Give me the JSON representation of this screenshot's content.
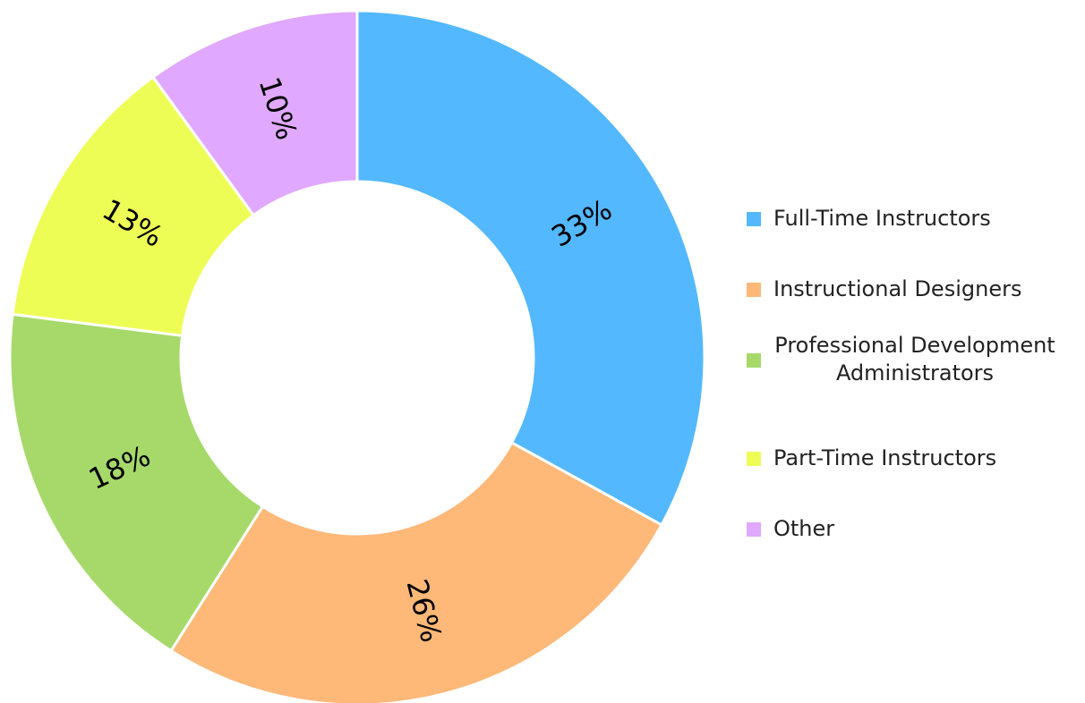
{
  "chart_data": {
    "type": "donut",
    "categories": [
      "Full-Time Instructors",
      "Instructional Designers",
      "Professional Development Administrators",
      "Part-Time Instructors",
      "Other"
    ],
    "values": [
      33,
      26,
      18,
      13,
      10
    ],
    "value_labels": [
      "33%",
      "26%",
      "18%",
      "13%",
      "10%"
    ],
    "colors": [
      "#54b8fe",
      "#feb878",
      "#a6d96a",
      "#eefd56",
      "#e0a8fe"
    ],
    "legend": "right"
  }
}
